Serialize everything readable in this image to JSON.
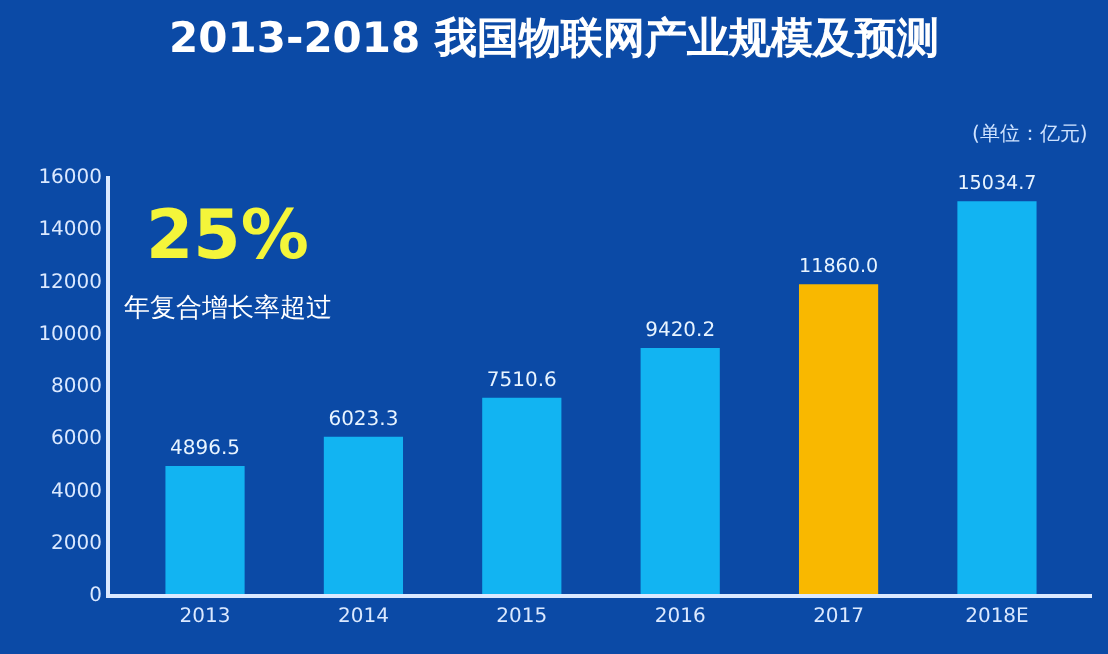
{
  "chart_data": {
    "type": "bar",
    "title": "2013-2018 我国物联网产业规模及预测",
    "annotations": [
      "(单位：亿元)",
      "25%",
      "年复合增长率超过"
    ],
    "categories": [
      "2013",
      "2014",
      "2015",
      "2016",
      "2017",
      "2018E"
    ],
    "values": [
      4896.5,
      6023.3,
      7510.6,
      9420.2,
      11860.0,
      15034.7
    ],
    "value_labels": [
      "4896.5",
      "6023.3",
      "7510.6",
      "9420.2",
      "11860.0",
      "15034.7"
    ],
    "colors": [
      "#12b4f2",
      "#12b4f2",
      "#12b4f2",
      "#12b4f2",
      "#f9b800",
      "#12b4f2"
    ],
    "ylim": [
      0,
      16000
    ],
    "yticks": [
      0,
      2000,
      4000,
      6000,
      8000,
      10000,
      12000,
      14000,
      16000
    ],
    "grid": false
  }
}
